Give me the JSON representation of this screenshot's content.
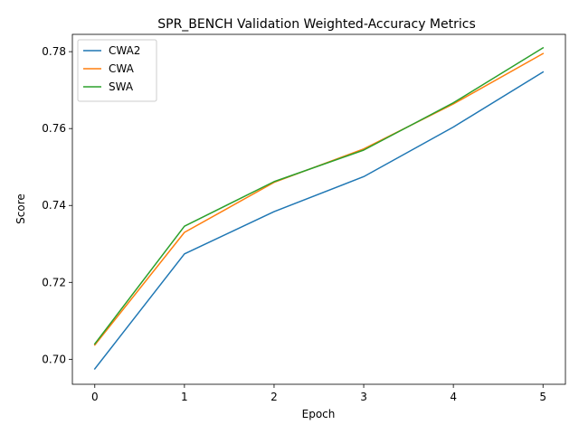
{
  "chart_data": {
    "type": "line",
    "title": "SPR_BENCH Validation Weighted-Accuracy Metrics",
    "xlabel": "Epoch",
    "ylabel": "Score",
    "x": [
      0,
      1,
      2,
      3,
      4,
      5
    ],
    "xlim": [
      -0.25,
      5.25
    ],
    "ylim": [
      0.6935,
      0.7845
    ],
    "xticks": [
      0,
      1,
      2,
      3,
      4,
      5
    ],
    "yticks": [
      0.7,
      0.72,
      0.74,
      0.76,
      0.78
    ],
    "ytick_labels": [
      "0.70",
      "0.72",
      "0.74",
      "0.76",
      "0.78"
    ],
    "grid": false,
    "legend": "top-left",
    "series": [
      {
        "name": "CWA2",
        "color": "#1f77b4",
        "values": [
          0.6975,
          0.7274,
          0.7384,
          0.7475,
          0.7604,
          0.7747
        ]
      },
      {
        "name": "CWA",
        "color": "#ff7f0e",
        "values": [
          0.7037,
          0.733,
          0.746,
          0.7547,
          0.7664,
          0.7795
        ]
      },
      {
        "name": "SWA",
        "color": "#2ca02c",
        "values": [
          0.704,
          0.7346,
          0.7462,
          0.7544,
          0.7667,
          0.781
        ]
      }
    ]
  }
}
